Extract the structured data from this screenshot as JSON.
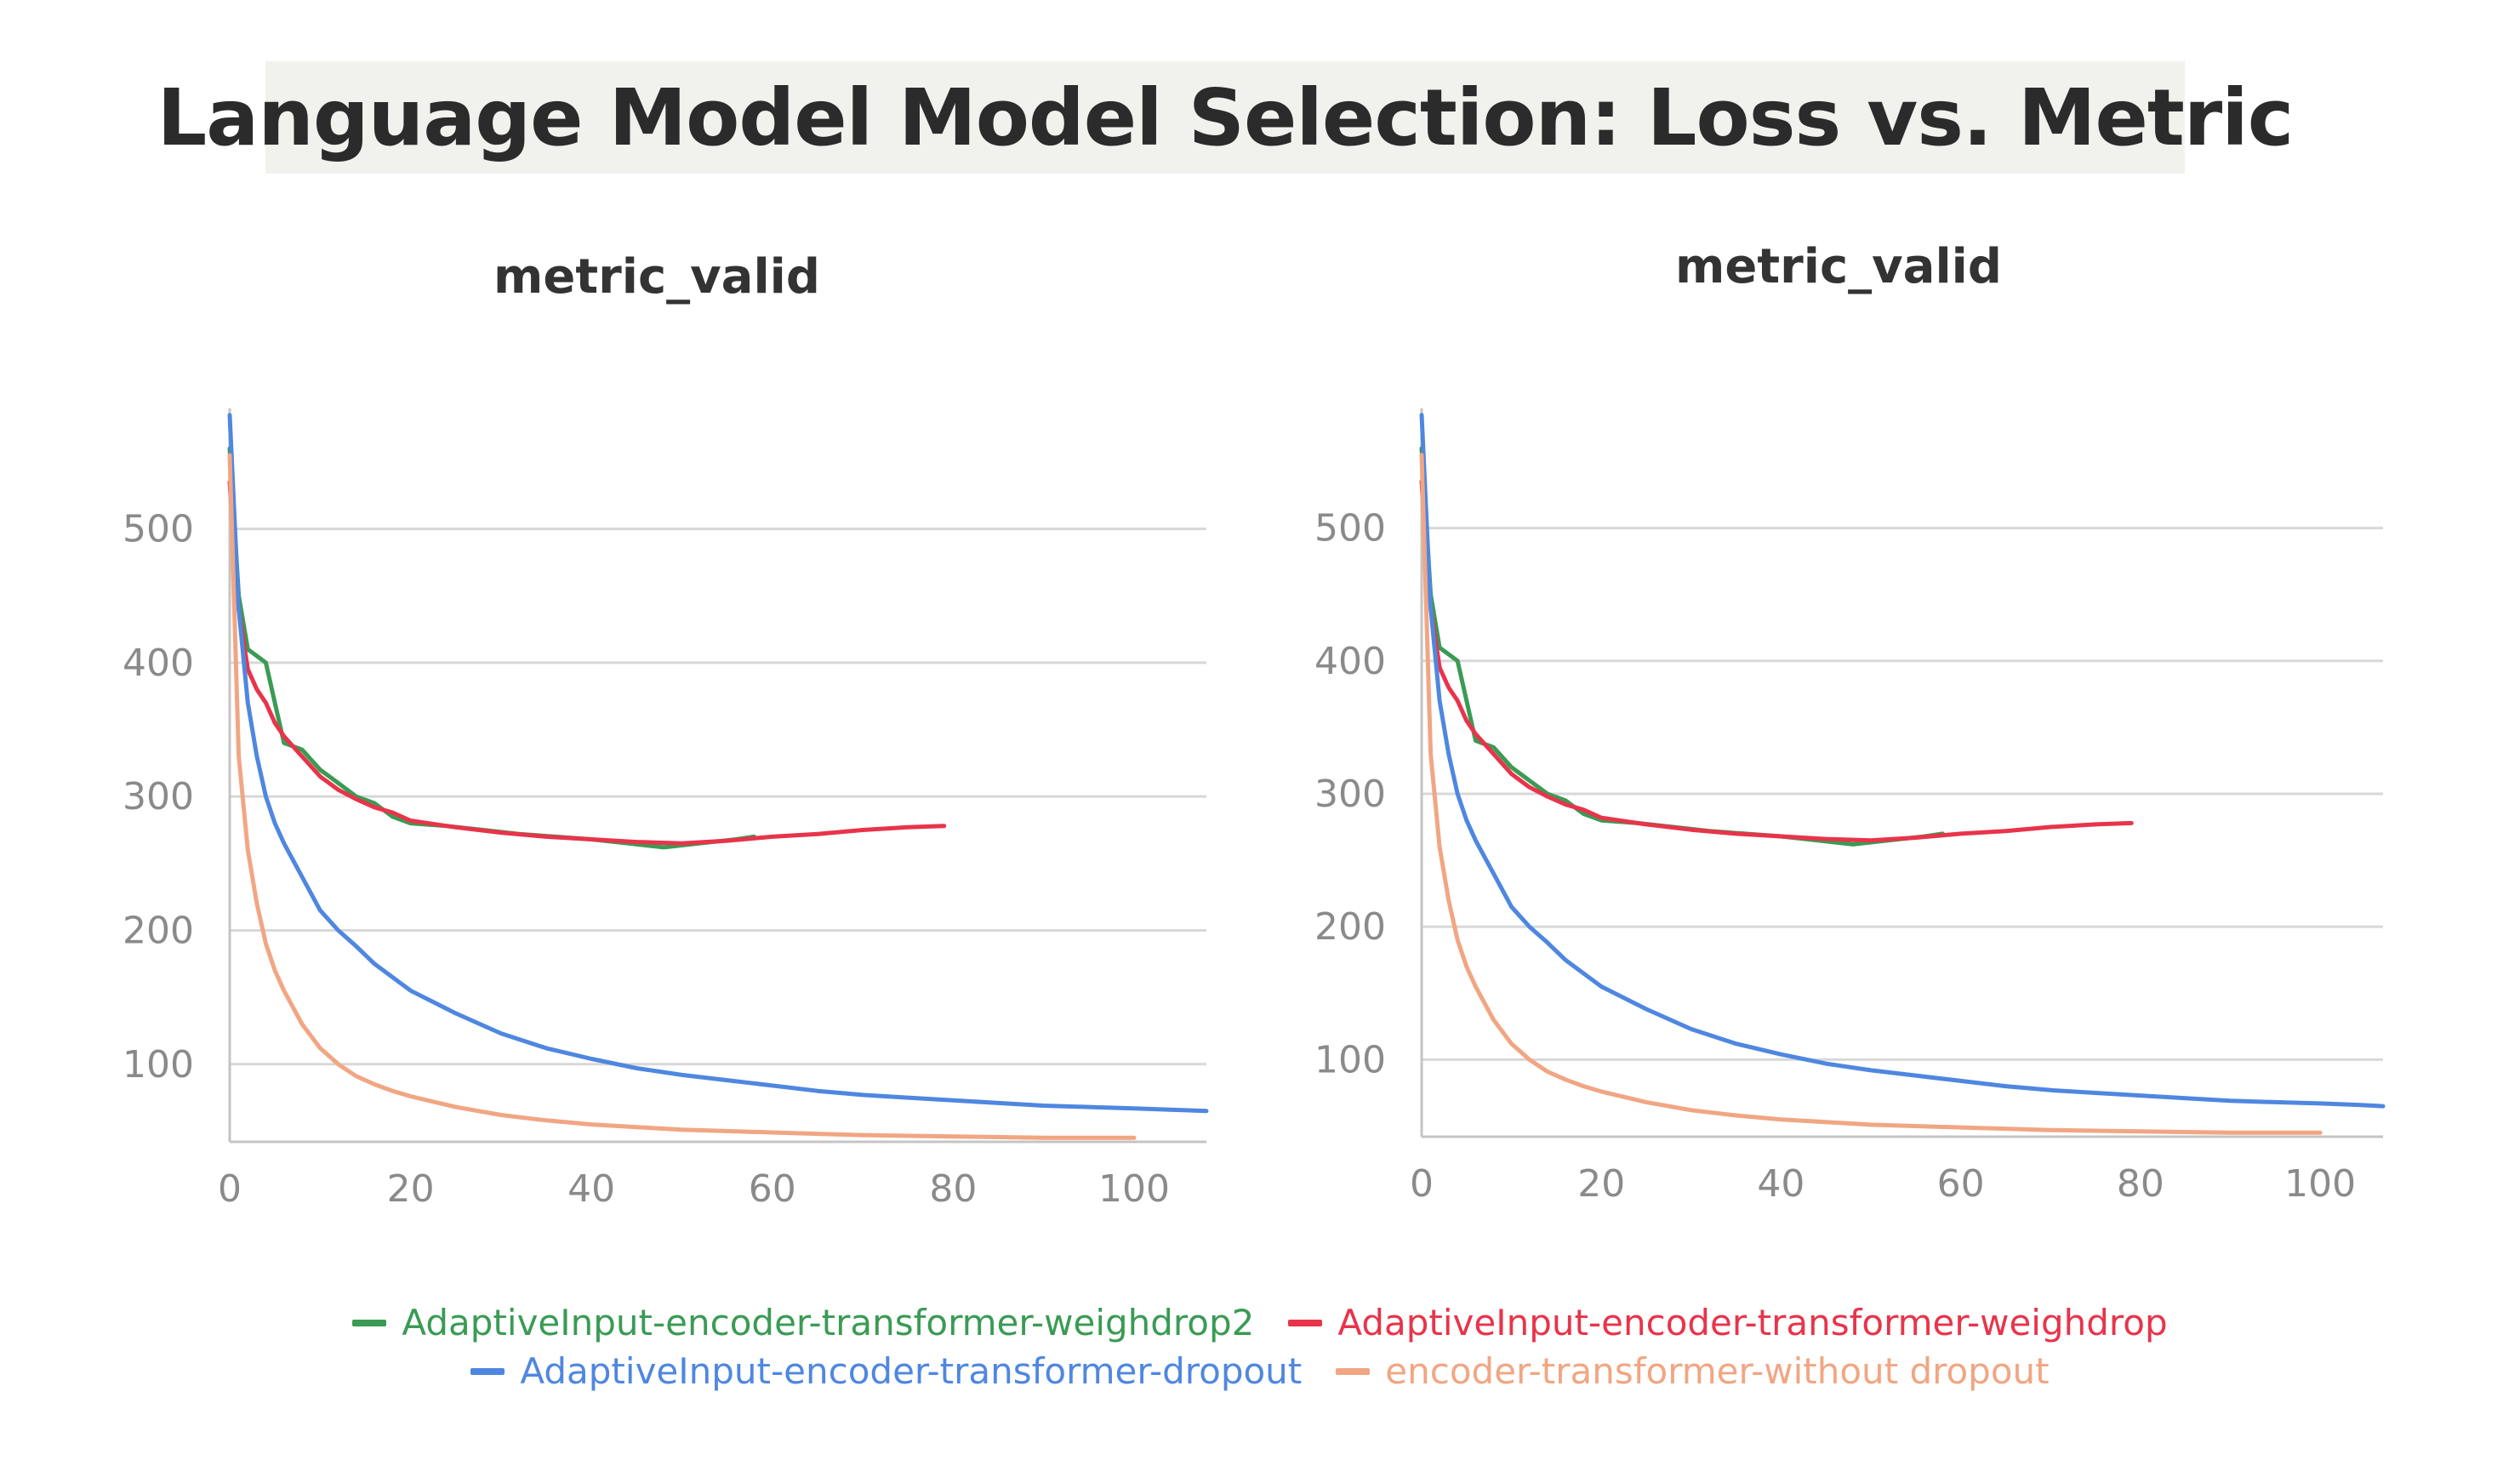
{
  "title": "Language Model Model Selection: Loss vs. Metric",
  "legend": [
    {
      "label": "AdaptiveInput-encoder-transformer-weighdrop2",
      "color": "#3a9b54"
    },
    {
      "label": "AdaptiveInput-encoder-transformer-weighdrop",
      "color": "#e8344b"
    },
    {
      "label": "AdaptiveInput-encoder-transformer-dropout",
      "color": "#4f87e0"
    },
    {
      "label": "encoder-transformer-without dropout",
      "color": "#f1a683"
    }
  ],
  "chart_data": [
    {
      "type": "line",
      "title": "metric_valid",
      "xlabel": "",
      "ylabel": "",
      "xlim": [
        0,
        108
      ],
      "ylim": [
        42,
        590
      ],
      "xticks": [
        0,
        20,
        40,
        60,
        80,
        100
      ],
      "yticks": [
        100,
        200,
        300,
        400,
        500
      ],
      "grid": true,
      "series": [
        {
          "name": "AdaptiveInput-encoder-transformer-weighdrop2",
          "color": "#3a9b54",
          "x": [
            0,
            1,
            2,
            3,
            4,
            5,
            6,
            8,
            10,
            12,
            14,
            16,
            18,
            20,
            24,
            28,
            32,
            36,
            40,
            44,
            48,
            52,
            56,
            58
          ],
          "y": [
            560,
            450,
            410,
            405,
            400,
            370,
            340,
            335,
            320,
            310,
            300,
            295,
            285,
            280,
            278,
            275,
            272,
            270,
            268,
            265,
            262,
            265,
            268,
            270
          ]
        },
        {
          "name": "AdaptiveInput-encoder-transformer-weighdrop",
          "color": "#e8344b",
          "x": [
            0,
            1,
            2,
            3,
            4,
            5,
            6,
            8,
            10,
            12,
            14,
            16,
            18,
            20,
            25,
            30,
            35,
            40,
            45,
            50,
            55,
            60,
            65,
            70,
            75,
            79
          ],
          "y": [
            535,
            440,
            395,
            380,
            370,
            355,
            345,
            330,
            315,
            305,
            298,
            292,
            288,
            282,
            277,
            273,
            270,
            268,
            266,
            265,
            267,
            270,
            272,
            275,
            277,
            278
          ]
        },
        {
          "name": "AdaptiveInput-encoder-transformer-dropout",
          "color": "#4f87e0",
          "x": [
            0,
            1,
            2,
            3,
            4,
            5,
            6,
            8,
            10,
            12,
            14,
            16,
            18,
            20,
            25,
            30,
            35,
            40,
            45,
            50,
            55,
            60,
            65,
            70,
            75,
            80,
            85,
            90,
            95,
            100,
            104,
            108
          ],
          "y": [
            585,
            440,
            370,
            330,
            300,
            280,
            265,
            240,
            215,
            200,
            188,
            175,
            165,
            155,
            138,
            123,
            112,
            104,
            97,
            92,
            88,
            84,
            80,
            77,
            75,
            73,
            71,
            69,
            68,
            67,
            66,
            65
          ]
        },
        {
          "name": "encoder-transformer-without dropout",
          "color": "#f1a683",
          "x": [
            0,
            1,
            2,
            3,
            4,
            5,
            6,
            8,
            10,
            12,
            14,
            16,
            18,
            20,
            25,
            30,
            35,
            40,
            45,
            50,
            55,
            60,
            65,
            70,
            80,
            90,
            100
          ],
          "y": [
            555,
            330,
            260,
            220,
            190,
            170,
            155,
            130,
            112,
            100,
            91,
            85,
            80,
            76,
            68,
            62,
            58,
            55,
            53,
            51,
            50,
            49,
            48,
            47,
            46,
            45,
            45
          ]
        }
      ]
    },
    {
      "type": "line",
      "title": "metric_valid",
      "xlabel": "",
      "ylabel": "",
      "xlim": [
        0,
        107
      ],
      "ylim": [
        42,
        590
      ],
      "xticks": [
        0,
        20,
        40,
        60,
        80,
        100
      ],
      "yticks": [
        100,
        200,
        300,
        400,
        500
      ],
      "grid": true,
      "series": [
        {
          "name": "AdaptiveInput-encoder-transformer-weighdrop2",
          "color": "#3a9b54",
          "x": [
            0,
            1,
            2,
            3,
            4,
            5,
            6,
            8,
            10,
            12,
            14,
            16,
            18,
            20,
            24,
            28,
            32,
            36,
            40,
            44,
            48,
            52,
            56,
            58
          ],
          "y": [
            560,
            450,
            410,
            405,
            400,
            370,
            340,
            335,
            320,
            310,
            300,
            295,
            285,
            280,
            278,
            275,
            272,
            270,
            268,
            265,
            262,
            265,
            268,
            270
          ]
        },
        {
          "name": "AdaptiveInput-encoder-transformer-weighdrop",
          "color": "#e8344b",
          "x": [
            0,
            1,
            2,
            3,
            4,
            5,
            6,
            8,
            10,
            12,
            14,
            16,
            18,
            20,
            25,
            30,
            35,
            40,
            45,
            50,
            55,
            60,
            65,
            70,
            75,
            79
          ],
          "y": [
            535,
            440,
            395,
            380,
            370,
            355,
            345,
            330,
            315,
            305,
            298,
            292,
            288,
            282,
            277,
            273,
            270,
            268,
            266,
            265,
            267,
            270,
            272,
            275,
            277,
            278
          ]
        },
        {
          "name": "AdaptiveInput-encoder-transformer-dropout",
          "color": "#4f87e0",
          "x": [
            0,
            1,
            2,
            3,
            4,
            5,
            6,
            8,
            10,
            12,
            14,
            16,
            18,
            20,
            25,
            30,
            35,
            40,
            45,
            50,
            55,
            60,
            65,
            70,
            75,
            80,
            85,
            90,
            95,
            100,
            104,
            107
          ],
          "y": [
            585,
            440,
            370,
            330,
            300,
            280,
            265,
            240,
            215,
            200,
            188,
            175,
            165,
            155,
            138,
            123,
            112,
            104,
            97,
            92,
            88,
            84,
            80,
            77,
            75,
            73,
            71,
            69,
            68,
            67,
            66,
            65
          ]
        },
        {
          "name": "encoder-transformer-without dropout",
          "color": "#f1a683",
          "x": [
            0,
            1,
            2,
            3,
            4,
            5,
            6,
            8,
            10,
            12,
            14,
            16,
            18,
            20,
            25,
            30,
            35,
            40,
            45,
            50,
            55,
            60,
            65,
            70,
            80,
            90,
            100
          ],
          "y": [
            555,
            330,
            260,
            220,
            190,
            170,
            155,
            130,
            112,
            100,
            91,
            85,
            80,
            76,
            68,
            62,
            58,
            55,
            53,
            51,
            50,
            49,
            48,
            47,
            46,
            45,
            45
          ]
        }
      ]
    }
  ]
}
